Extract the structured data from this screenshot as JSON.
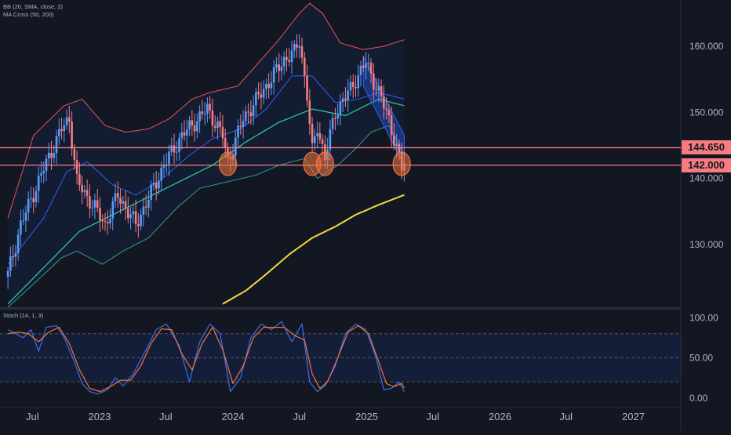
{
  "legends": {
    "bb": "BB (20, SMA, close, 2)",
    "ma": "MA Cross (50, 200)",
    "stoch": "Stoch (14, 1, 3)"
  },
  "colors": {
    "background": "#131722",
    "bull": "#5b9cf6",
    "bear": "#f77c80",
    "bb_upper": "#e8545a",
    "bb_lower": "#2f9e83",
    "bb_basis": "#2962ff",
    "ma_fast": "#26c6a0",
    "ma_slow": "#f5d742",
    "stoch_k": "#3a6df0",
    "stoch_d": "#f4743b",
    "level_line": "#f77c80",
    "support_marker": "#f4743b"
  },
  "chart_data": [
    {
      "type": "candlestick",
      "title": "",
      "y_ticks": [
        "160.000",
        "150.000",
        "140.000",
        "130.000"
      ],
      "ylim": [
        120.5,
        167
      ],
      "x_ticks": [
        "Jul",
        "2023",
        "Jul",
        "2024",
        "Jul",
        "2025",
        "Jul",
        "2026",
        "Jul",
        "2027"
      ],
      "price_levels": [
        {
          "value": 144.65,
          "label": "144.650"
        },
        {
          "value": 142.0,
          "label": "142.000"
        }
      ],
      "support_markers_dates": [
        "2023-12-18",
        "2024-08-05",
        "2024-09-09",
        "2025-04-07"
      ],
      "channel": {
        "upper": [
          [
            "2024-12-23",
            158.5
          ],
          [
            "2025-04-14",
            146.5
          ]
        ],
        "lower": [
          [
            "2024-12-23",
            154.0
          ],
          [
            "2025-04-14",
            142.0
          ]
        ]
      },
      "anchors": {
        "close": [
          [
            "2022-04-25",
            125.5
          ],
          [
            "2022-05-30",
            133.0
          ],
          [
            "2022-08-01",
            141.5
          ],
          [
            "2022-09-19",
            147.5
          ],
          [
            "2022-10-10",
            149.0
          ],
          [
            "2022-10-31",
            139.5
          ],
          [
            "2022-12-19",
            135.5
          ],
          [
            "2023-01-16",
            133.0
          ],
          [
            "2023-02-20",
            137.5
          ],
          [
            "2023-04-10",
            133.0
          ],
          [
            "2023-05-15",
            137.0
          ],
          [
            "2023-06-26",
            142.0
          ],
          [
            "2023-08-14",
            146.5
          ],
          [
            "2023-10-23",
            150.5
          ],
          [
            "2023-12-04",
            146.5
          ],
          [
            "2023-12-18",
            142.5
          ],
          [
            "2024-01-29",
            149.0
          ],
          [
            "2024-04-01",
            154.0
          ],
          [
            "2024-05-20",
            158.0
          ],
          [
            "2024-06-17",
            159.0
          ],
          [
            "2024-07-01",
            161.0
          ],
          [
            "2024-07-22",
            152.5
          ],
          [
            "2024-08-05",
            144.0
          ],
          [
            "2024-08-19",
            148.0
          ],
          [
            "2024-09-09",
            143.0
          ],
          [
            "2024-10-07",
            150.0
          ],
          [
            "2024-11-18",
            153.5
          ],
          [
            "2024-12-02",
            155.0
          ],
          [
            "2024-12-30",
            157.5
          ],
          [
            "2025-02-03",
            153.0
          ],
          [
            "2025-03-03",
            149.0
          ],
          [
            "2025-04-07",
            141.5
          ],
          [
            "2025-04-14",
            142.5
          ]
        ],
        "bb_upper": [
          [
            "2022-04-25",
            134.0
          ],
          [
            "2022-07-04",
            146.5
          ],
          [
            "2022-09-26",
            151.0
          ],
          [
            "2022-11-14",
            152.0
          ],
          [
            "2023-01-16",
            148.0
          ],
          [
            "2023-03-13",
            147.0
          ],
          [
            "2023-05-15",
            147.5
          ],
          [
            "2023-07-10",
            149.0
          ],
          [
            "2023-09-11",
            152.0
          ],
          [
            "2023-10-30",
            153.0
          ],
          [
            "2024-01-15",
            154.0
          ],
          [
            "2024-03-11",
            157.5
          ],
          [
            "2024-05-06",
            161.0
          ],
          [
            "2024-07-01",
            165.0
          ],
          [
            "2024-07-29",
            166.5
          ],
          [
            "2024-09-02",
            165.0
          ],
          [
            "2024-10-21",
            160.5
          ],
          [
            "2024-12-23",
            159.5
          ],
          [
            "2025-02-17",
            160.0
          ],
          [
            "2025-04-14",
            161.0
          ]
        ],
        "bb_lower": [
          [
            "2022-04-25",
            120.5
          ],
          [
            "2022-07-04",
            124.0
          ],
          [
            "2022-09-19",
            128.0
          ],
          [
            "2022-10-31",
            129.0
          ],
          [
            "2023-01-09",
            127.0
          ],
          [
            "2023-03-06",
            129.0
          ],
          [
            "2023-05-15",
            131.0
          ],
          [
            "2023-07-31",
            135.5
          ],
          [
            "2023-10-02",
            138.5
          ],
          [
            "2023-12-18",
            139.5
          ],
          [
            "2024-03-04",
            140.5
          ],
          [
            "2024-05-06",
            142.0
          ],
          [
            "2024-07-15",
            143.0
          ],
          [
            "2024-08-19",
            140.0
          ],
          [
            "2024-10-14",
            142.0
          ],
          [
            "2024-12-02",
            144.5
          ],
          [
            "2025-01-13",
            147.0
          ],
          [
            "2025-03-03",
            148.0
          ],
          [
            "2025-04-14",
            143.5
          ]
        ],
        "bb_basis": [
          [
            "2022-04-25",
            127.0
          ],
          [
            "2022-08-01",
            134.0
          ],
          [
            "2022-10-03",
            141.0
          ],
          [
            "2022-11-28",
            142.5
          ],
          [
            "2023-02-06",
            139.0
          ],
          [
            "2023-04-10",
            137.5
          ],
          [
            "2023-06-12",
            139.5
          ],
          [
            "2023-09-04",
            143.5
          ],
          [
            "2023-11-06",
            146.0
          ],
          [
            "2024-01-22",
            147.5
          ],
          [
            "2024-04-01",
            150.5
          ],
          [
            "2024-06-10",
            155.5
          ],
          [
            "2024-08-05",
            155.5
          ],
          [
            "2024-10-07",
            151.5
          ],
          [
            "2024-12-09",
            152.0
          ],
          [
            "2025-02-03",
            153.0
          ],
          [
            "2025-04-14",
            152.0
          ]
        ],
        "ma_fast": [
          [
            "2022-04-25",
            121.0
          ],
          [
            "2022-08-01",
            126.5
          ],
          [
            "2022-11-07",
            132.0
          ],
          [
            "2023-02-06",
            134.5
          ],
          [
            "2023-05-08",
            137.0
          ],
          [
            "2023-08-07",
            139.5
          ],
          [
            "2023-11-06",
            142.0
          ],
          [
            "2024-02-05",
            145.5
          ],
          [
            "2024-05-06",
            148.5
          ],
          [
            "2024-08-05",
            150.5
          ],
          [
            "2024-11-04",
            149.5
          ],
          [
            "2025-02-03",
            152.0
          ],
          [
            "2025-04-14",
            151.0
          ]
        ],
        "ma_slow": [
          [
            "2023-12-04",
            121.0
          ],
          [
            "2024-02-05",
            123.0
          ],
          [
            "2024-04-01",
            125.5
          ],
          [
            "2024-06-03",
            128.5
          ],
          [
            "2024-08-05",
            131.0
          ],
          [
            "2024-10-07",
            132.7
          ],
          [
            "2024-12-02",
            134.5
          ],
          [
            "2025-02-03",
            136.0
          ],
          [
            "2025-04-14",
            137.5
          ]
        ],
        "stoch_k": [
          [
            "2022-04-25",
            85
          ],
          [
            "2022-05-16",
            80
          ],
          [
            "2022-06-06",
            75
          ],
          [
            "2022-06-27",
            85
          ],
          [
            "2022-07-18",
            58
          ],
          [
            "2022-08-08",
            88
          ],
          [
            "2022-09-05",
            90
          ],
          [
            "2022-09-26",
            75
          ],
          [
            "2022-10-24",
            45
          ],
          [
            "2022-11-14",
            18
          ],
          [
            "2022-12-05",
            8
          ],
          [
            "2022-12-26",
            5
          ],
          [
            "2023-01-23",
            10
          ],
          [
            "2023-02-13",
            25
          ],
          [
            "2023-03-06",
            15
          ],
          [
            "2023-04-03",
            30
          ],
          [
            "2023-05-08",
            60
          ],
          [
            "2023-06-05",
            85
          ],
          [
            "2023-07-03",
            92
          ],
          [
            "2023-08-07",
            65
          ],
          [
            "2023-09-04",
            20
          ],
          [
            "2023-10-02",
            70
          ],
          [
            "2023-10-30",
            92
          ],
          [
            "2023-11-27",
            80
          ],
          [
            "2023-12-25",
            8
          ],
          [
            "2024-01-22",
            25
          ],
          [
            "2024-02-19",
            75
          ],
          [
            "2024-03-18",
            92
          ],
          [
            "2024-04-15",
            85
          ],
          [
            "2024-05-13",
            95
          ],
          [
            "2024-06-10",
            70
          ],
          [
            "2024-07-08",
            92
          ],
          [
            "2024-07-29",
            20
          ],
          [
            "2024-08-19",
            8
          ],
          [
            "2024-09-09",
            15
          ],
          [
            "2024-10-07",
            40
          ],
          [
            "2024-11-04",
            80
          ],
          [
            "2024-12-02",
            92
          ],
          [
            "2024-12-30",
            85
          ],
          [
            "2025-01-27",
            50
          ],
          [
            "2025-02-17",
            10
          ],
          [
            "2025-03-10",
            12
          ],
          [
            "2025-03-31",
            20
          ],
          [
            "2025-04-14",
            8
          ]
        ],
        "stoch_d": [
          [
            "2022-04-25",
            80
          ],
          [
            "2022-05-23",
            82
          ],
          [
            "2022-06-20",
            80
          ],
          [
            "2022-07-18",
            70
          ],
          [
            "2022-08-15",
            82
          ],
          [
            "2022-09-12",
            88
          ],
          [
            "2022-10-10",
            68
          ],
          [
            "2022-11-07",
            35
          ],
          [
            "2022-12-05",
            12
          ],
          [
            "2023-01-02",
            8
          ],
          [
            "2023-01-30",
            14
          ],
          [
            "2023-02-27",
            22
          ],
          [
            "2023-03-27",
            22
          ],
          [
            "2023-04-24",
            40
          ],
          [
            "2023-05-22",
            68
          ],
          [
            "2023-06-19",
            86
          ],
          [
            "2023-07-17",
            85
          ],
          [
            "2023-08-14",
            55
          ],
          [
            "2023-09-11",
            35
          ],
          [
            "2023-10-09",
            68
          ],
          [
            "2023-11-06",
            88
          ],
          [
            "2023-12-04",
            60
          ],
          [
            "2024-01-01",
            18
          ],
          [
            "2024-01-29",
            40
          ],
          [
            "2024-02-26",
            75
          ],
          [
            "2024-03-25",
            88
          ],
          [
            "2024-04-22",
            88
          ],
          [
            "2024-05-20",
            88
          ],
          [
            "2024-06-17",
            78
          ],
          [
            "2024-07-15",
            72
          ],
          [
            "2024-08-05",
            30
          ],
          [
            "2024-08-26",
            12
          ],
          [
            "2024-09-16",
            20
          ],
          [
            "2024-10-14",
            50
          ],
          [
            "2024-11-11",
            82
          ],
          [
            "2024-12-09",
            90
          ],
          [
            "2025-01-06",
            80
          ],
          [
            "2025-02-03",
            45
          ],
          [
            "2025-02-24",
            18
          ],
          [
            "2025-03-17",
            14
          ],
          [
            "2025-04-07",
            18
          ],
          [
            "2025-04-14",
            12
          ]
        ]
      }
    },
    {
      "type": "line",
      "title": "",
      "y_ticks": [
        "100.00",
        "50.00",
        "0.00"
      ],
      "ylim": [
        -10,
        110
      ],
      "band": [
        20,
        80
      ],
      "midline": 50
    }
  ]
}
